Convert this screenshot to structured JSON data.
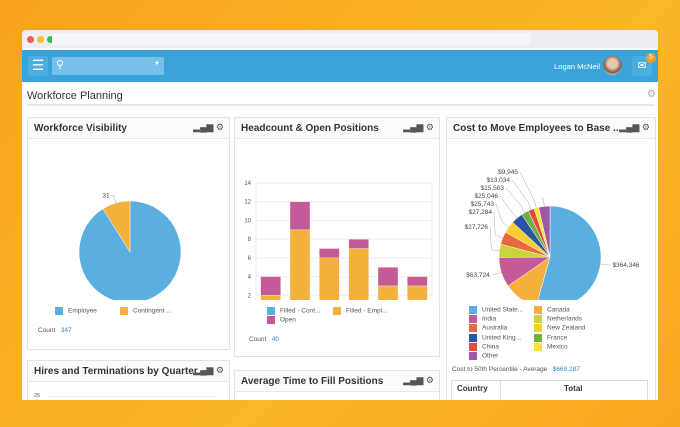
{
  "header": {
    "user_name": "Logan McNeil",
    "notification_count": "5"
  },
  "page": {
    "title": "Workforce Planning"
  },
  "cards": {
    "workforce_visibility": {
      "title": "Workforce Visibility",
      "count_label": "Count",
      "count_value": "347"
    },
    "headcount": {
      "title": "Headcount & Open Positions",
      "count_label": "Count",
      "count_value": "40"
    },
    "cost_move": {
      "title": "Cost to Move Employees to Base ...",
      "summary_label": "Cost to 50th Percentile - Average",
      "summary_value": "$669,287",
      "table_headers": [
        "Country",
        "Total"
      ]
    },
    "hires": {
      "title": "Hires and Terminations by Quarter",
      "first_tick": "25"
    },
    "time_fill": {
      "title": "Average Time to Fill Positions"
    }
  },
  "chart_data": [
    {
      "type": "pie",
      "series": [
        {
          "name": "Employee",
          "value": 316,
          "label": "316",
          "color": "#5aaee0"
        },
        {
          "name": "Contingent ...",
          "value": 31,
          "label": "31",
          "color": "#f4b03c"
        }
      ],
      "legend": "bottom"
    },
    {
      "type": "bar",
      "stacked": true,
      "categories": [
        "Bene...",
        "HR O...",
        "Huma...",
        "Payr...",
        "Recr...",
        "Work..."
      ],
      "ylim": [
        0,
        14
      ],
      "yticks": [
        "0",
        "2",
        "4",
        "6",
        "8",
        "10",
        "12",
        "14"
      ],
      "grid": true,
      "legend": "bottom",
      "series": [
        {
          "name": "Filled - Cont...",
          "values": [
            0,
            1,
            0,
            0,
            1,
            0
          ],
          "color": "#5aaee0"
        },
        {
          "name": "Filled - Empl...",
          "values": [
            2,
            8,
            6,
            7,
            2,
            3
          ],
          "color": "#f4b03c"
        },
        {
          "name": "Open",
          "values": [
            2,
            3,
            1,
            1,
            2,
            1
          ],
          "color": "#c45b98"
        }
      ]
    },
    {
      "type": "pie",
      "legend": "bottom",
      "series": [
        {
          "name": "United State...",
          "value": 364346,
          "label": "$364,346",
          "color": "#5aaee0"
        },
        {
          "name": "Canada",
          "value": 73600,
          "label": "$73,600",
          "color": "#f4b03c"
        },
        {
          "name": "India",
          "value": 63724,
          "label": "$63,724",
          "color": "#c45b98"
        },
        {
          "name": "Netherlands",
          "value": 27726,
          "label": "$27,726",
          "color": "#c9d33a"
        },
        {
          "name": "Australia",
          "value": 27284,
          "label": "$27,284",
          "color": "#e8693a"
        },
        {
          "name": "New Zealand",
          "value": 25743,
          "label": "$25,743",
          "color": "#f9cf30"
        },
        {
          "name": "United King...",
          "value": 25046,
          "label": "$25,046",
          "color": "#2a55a5"
        },
        {
          "name": "France",
          "value": 15503,
          "label": "$15,503",
          "color": "#6fb043"
        },
        {
          "name": "China",
          "value": 13034,
          "label": "$13,034",
          "color": "#e04b3a"
        },
        {
          "name": "Mexico",
          "value": 9945,
          "label": "$9,945",
          "color": "#fbe23a"
        },
        {
          "name": "Other",
          "value": 24000,
          "label": "",
          "color": "#9b59a6"
        }
      ]
    }
  ]
}
